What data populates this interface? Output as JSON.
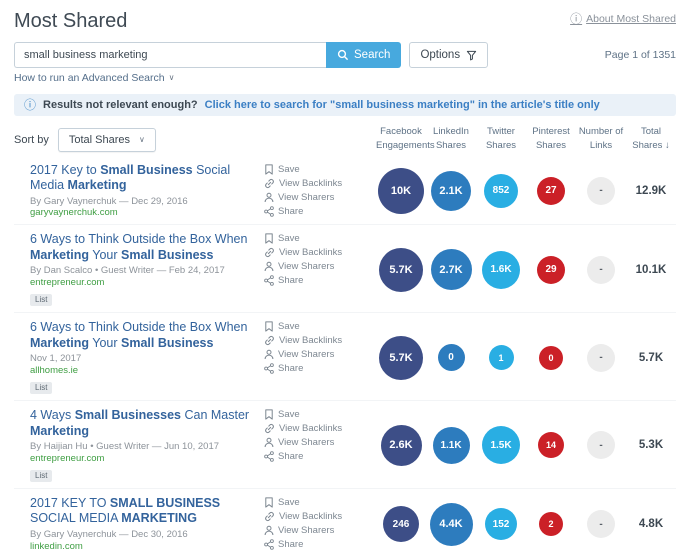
{
  "colors": {
    "facebook": {
      "bg": "#3d4e87",
      "text": "#ffffff"
    },
    "linkedin": {
      "bg": "#2d7cbe",
      "text": "#ffffff"
    },
    "twitter": {
      "bg": "#29aee3",
      "text": "#ffffff"
    },
    "pinterest": {
      "bg": "#cb2027",
      "text": "#ffffff"
    },
    "links": {
      "bg": "#ececec",
      "text": "#5a6169"
    },
    "accent": "#47a9de"
  },
  "icons": {
    "info": "ⓘ",
    "chevron_down": "∨"
  },
  "page": {
    "title": "Most Shared",
    "about_link": "About Most Shared",
    "page_info": "Page 1 of 1351",
    "advanced_search": "How to run an Advanced Search"
  },
  "search": {
    "value": "small business marketing",
    "button": "Search",
    "options": "Options"
  },
  "banner": {
    "prefix": "Results not relevant enough?",
    "link": "Click here to search for \"small business marketing\" in the article's title only"
  },
  "sort": {
    "label": "Sort by",
    "value": "Total Shares"
  },
  "columns": [
    "Facebook Engagements",
    "LinkedIn Shares",
    "Twitter Shares",
    "Pinterest Shares",
    "Number of Links",
    "Total Shares ↓"
  ],
  "actions": {
    "save": "Save",
    "backlinks": "View Backlinks",
    "sharers": "View Sharers",
    "share": "Share"
  },
  "results": [
    {
      "title": [
        "2017 Key to ",
        "Small Business",
        " Social Media ",
        "Marketing"
      ],
      "byline": "By Gary Vaynerchuk — Dec 29, 2016",
      "domain": "garyvaynerchuk.com",
      "metrics": [
        {
          "value": "10K",
          "size": 46
        },
        {
          "value": "2.1K",
          "size": 40
        },
        {
          "value": "852",
          "size": 34
        },
        {
          "value": "27",
          "size": 28
        },
        {
          "value": "-",
          "size": 28
        }
      ],
      "total": "12.9K"
    },
    {
      "title": [
        "6 Ways to Think Outside the Box When ",
        "Marketing",
        " Your ",
        "Small Business"
      ],
      "byline": "By Dan Scalco • Guest Writer — Feb 24, 2017",
      "domain": "entrepreneur.com",
      "badge": "List",
      "metrics": [
        {
          "value": "5.7K",
          "size": 44
        },
        {
          "value": "2.7K",
          "size": 41
        },
        {
          "value": "1.6K",
          "size": 38
        },
        {
          "value": "29",
          "size": 28
        },
        {
          "value": "-",
          "size": 28
        }
      ],
      "total": "10.1K"
    },
    {
      "title": [
        "6 Ways to Think Outside the Box When ",
        "Marketing",
        " Your ",
        "Small Business"
      ],
      "byline": "Nov 1, 2017",
      "domain": "allhomes.ie",
      "badge": "List",
      "metrics": [
        {
          "value": "5.7K",
          "size": 44
        },
        {
          "value": "0",
          "size": 27
        },
        {
          "value": "1",
          "size": 25
        },
        {
          "value": "0",
          "size": 24
        },
        {
          "value": "-",
          "size": 28
        }
      ],
      "total": "5.7K"
    },
    {
      "title": [
        "4 Ways ",
        "Small Businesses",
        " Can Master ",
        "Marketing"
      ],
      "byline": "By Haijian Hu • Guest Writer — Jun 10, 2017",
      "domain": "entrepreneur.com",
      "badge": "List",
      "metrics": [
        {
          "value": "2.6K",
          "size": 41
        },
        {
          "value": "1.1K",
          "size": 37
        },
        {
          "value": "1.5K",
          "size": 38
        },
        {
          "value": "14",
          "size": 26
        },
        {
          "value": "-",
          "size": 28
        }
      ],
      "total": "5.3K"
    },
    {
      "title": [
        "2017 KEY TO ",
        "SMALL BUSINESS",
        " SOCIAL MEDIA ",
        "MARKETING"
      ],
      "byline": "By Gary Vaynerchuk — Dec 30, 2016",
      "domain": "linkedin.com",
      "metrics": [
        {
          "value": "246",
          "size": 36
        },
        {
          "value": "4.4K",
          "size": 43
        },
        {
          "value": "152",
          "size": 32
        },
        {
          "value": "2",
          "size": 24
        },
        {
          "value": "-",
          "size": 28
        }
      ],
      "total": "4.8K"
    }
  ]
}
